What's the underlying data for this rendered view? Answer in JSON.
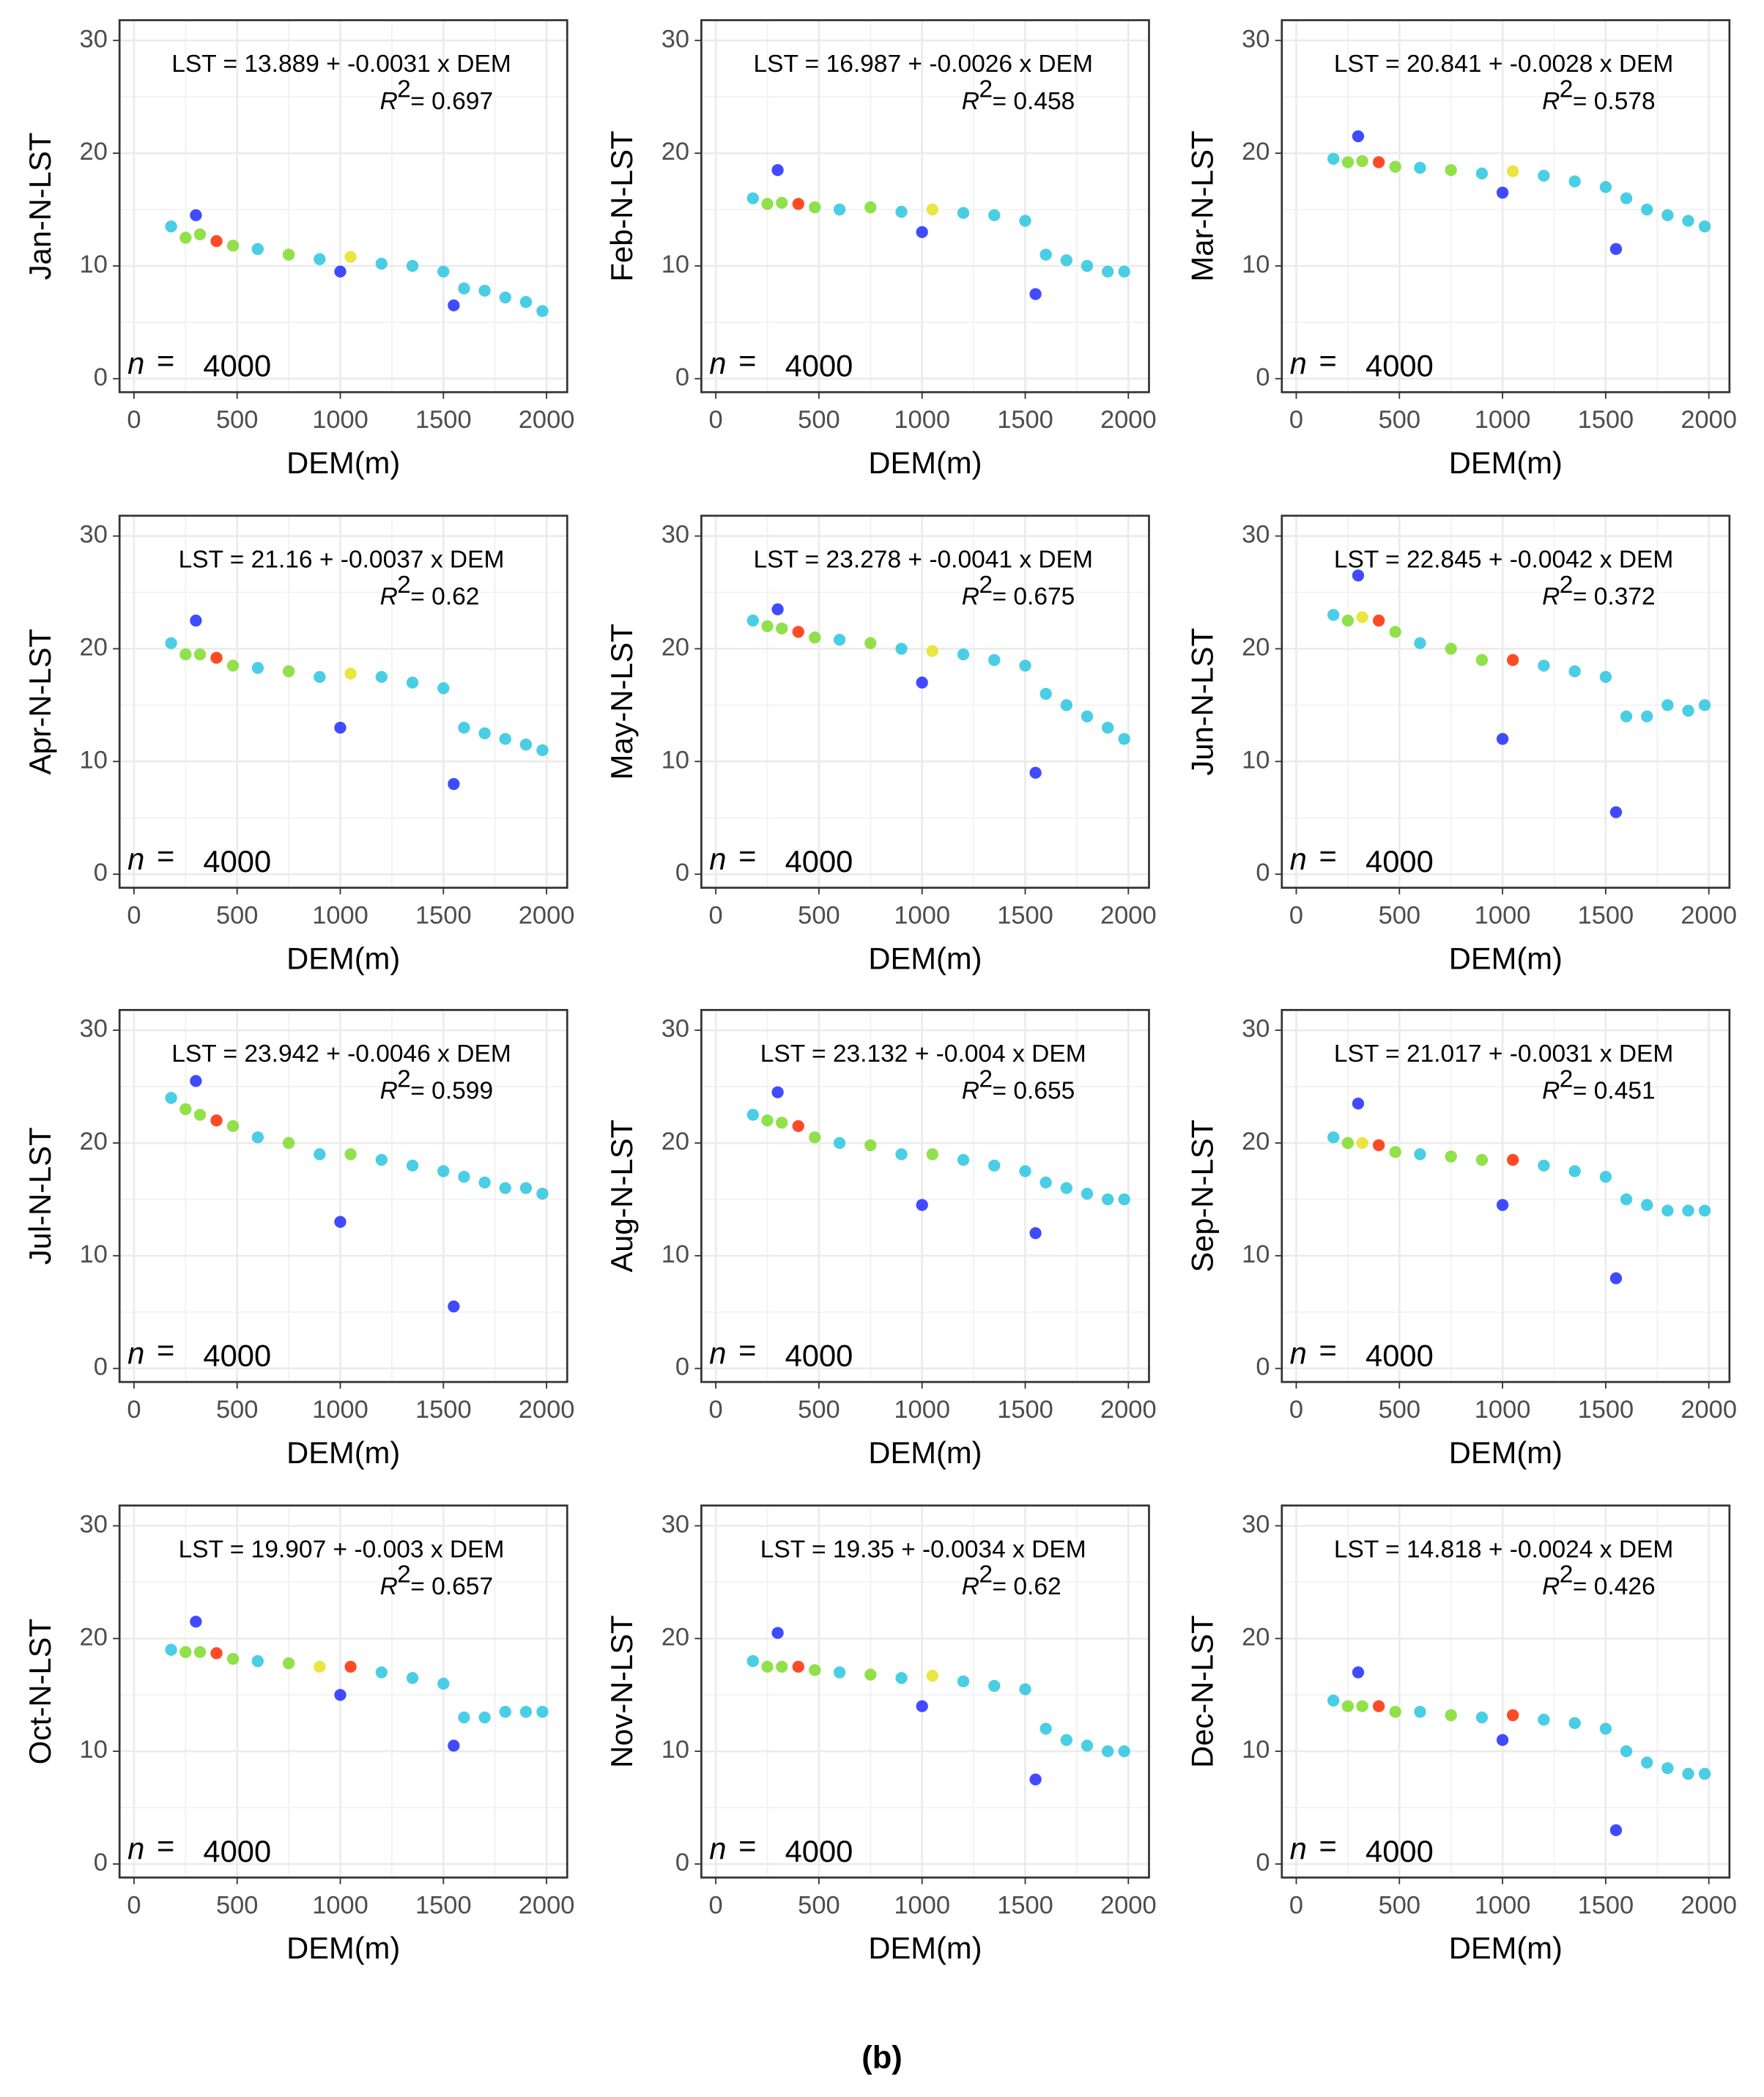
{
  "caption": "(b)",
  "chart_data": [
    {
      "type": "scatter",
      "y_label": "Jan-N-LST",
      "x_label": "DEM(m)",
      "equation": "LST = 13.889 + -0.0031 x DEM",
      "r2_symbol": "R",
      "r2_power": "2",
      "r2_value": "= 0.697",
      "n_symbol": "n",
      "n_equals": "=",
      "n_value": 4000,
      "xlim": [
        -70,
        2100
      ],
      "ylim": [
        -1.2,
        31.8
      ],
      "xticks": [
        0,
        500,
        1000,
        1500,
        2000
      ],
      "yticks": [
        0,
        10,
        20,
        30
      ],
      "grid": true,
      "x": [
        180,
        250,
        320,
        400,
        480,
        600,
        750,
        900,
        1050,
        1200,
        1350,
        1500,
        1600,
        1700,
        1800,
        1900,
        1980,
        300,
        1000,
        1550
      ],
      "y": [
        13.5,
        12.5,
        12.8,
        12.2,
        11.8,
        11.5,
        11.0,
        10.6,
        10.8,
        10.2,
        10.0,
        9.5,
        8.0,
        7.8,
        7.2,
        6.8,
        6.0,
        14.5,
        9.5,
        6.5
      ],
      "colors": [
        "#29c5e0",
        "#7ddc2a",
        "#7ddc2a",
        "#ff2a00",
        "#7ddc2a",
        "#29c5e0",
        "#7ddc2a",
        "#29c5e0",
        "#e8e020",
        "#29c5e0",
        "#29c5e0",
        "#29c5e0",
        "#29c5e0",
        "#29c5e0",
        "#29c5e0",
        "#29c5e0",
        "#29c5e0",
        "#1f2cff",
        "#1f2cff",
        "#1f2cff"
      ]
    },
    {
      "type": "scatter",
      "y_label": "Feb-N-LST",
      "x_label": "DEM(m)",
      "equation": "LST = 16.987 + -0.0026 x DEM",
      "r2_symbol": "R",
      "r2_power": "2",
      "r2_value": "= 0.458",
      "n_symbol": "n",
      "n_equals": "=",
      "n_value": 4000,
      "xlim": [
        -70,
        2100
      ],
      "ylim": [
        -1.2,
        31.8
      ],
      "xticks": [
        0,
        500,
        1000,
        1500,
        2000
      ],
      "yticks": [
        0,
        10,
        20,
        30
      ],
      "grid": true,
      "x": [
        180,
        250,
        320,
        400,
        480,
        600,
        750,
        900,
        1050,
        1200,
        1350,
        1500,
        1600,
        1700,
        1800,
        1900,
        1980,
        300,
        1000,
        1550
      ],
      "y": [
        16,
        15.5,
        15.6,
        15.5,
        15.2,
        15,
        15.2,
        14.8,
        15.0,
        14.7,
        14.5,
        14,
        11,
        10.5,
        10,
        9.5,
        9.5,
        18.5,
        13,
        7.5
      ],
      "colors": [
        "#29c5e0",
        "#7ddc2a",
        "#7ddc2a",
        "#ff2a00",
        "#7ddc2a",
        "#29c5e0",
        "#7ddc2a",
        "#29c5e0",
        "#e8e020",
        "#29c5e0",
        "#29c5e0",
        "#29c5e0",
        "#29c5e0",
        "#29c5e0",
        "#29c5e0",
        "#29c5e0",
        "#29c5e0",
        "#1f2cff",
        "#1f2cff",
        "#1f2cff"
      ]
    },
    {
      "type": "scatter",
      "y_label": "Mar-N-LST",
      "x_label": "DEM(m)",
      "equation": "LST = 20.841 + -0.0028 x DEM",
      "r2_symbol": "R",
      "r2_power": "2",
      "r2_value": "= 0.578",
      "n_symbol": "n",
      "n_equals": "=",
      "n_value": 4000,
      "xlim": [
        -70,
        2100
      ],
      "ylim": [
        -1.2,
        31.8
      ],
      "xticks": [
        0,
        500,
        1000,
        1500,
        2000
      ],
      "yticks": [
        0,
        10,
        20,
        30
      ],
      "grid": true,
      "x": [
        180,
        250,
        320,
        400,
        480,
        600,
        750,
        900,
        1050,
        1200,
        1350,
        1500,
        1600,
        1700,
        1800,
        1900,
        1980,
        300,
        1000,
        1550
      ],
      "y": [
        19.5,
        19.2,
        19.3,
        19.2,
        18.8,
        18.7,
        18.5,
        18.2,
        18.4,
        18,
        17.5,
        17,
        16,
        15,
        14.5,
        14,
        13.5,
        21.5,
        16.5,
        11.5
      ],
      "colors": [
        "#29c5e0",
        "#7ddc2a",
        "#7ddc2a",
        "#ff2a00",
        "#7ddc2a",
        "#29c5e0",
        "#7ddc2a",
        "#29c5e0",
        "#e8e020",
        "#29c5e0",
        "#29c5e0",
        "#29c5e0",
        "#29c5e0",
        "#29c5e0",
        "#29c5e0",
        "#29c5e0",
        "#29c5e0",
        "#1f2cff",
        "#1f2cff",
        "#1f2cff"
      ]
    },
    {
      "type": "scatter",
      "y_label": "Apr-N-LST",
      "x_label": "DEM(m)",
      "equation": "LST = 21.16 + -0.0037 x DEM",
      "r2_symbol": "R",
      "r2_power": "2",
      "r2_value": "= 0.62",
      "n_symbol": "n",
      "n_equals": "=",
      "n_value": 4000,
      "xlim": [
        -70,
        2100
      ],
      "ylim": [
        -1.2,
        31.8
      ],
      "xticks": [
        0,
        500,
        1000,
        1500,
        2000
      ],
      "yticks": [
        0,
        10,
        20,
        30
      ],
      "grid": true,
      "x": [
        180,
        250,
        320,
        400,
        480,
        600,
        750,
        900,
        1050,
        1200,
        1350,
        1500,
        1600,
        1700,
        1800,
        1900,
        1980,
        300,
        1000,
        1550
      ],
      "y": [
        20.5,
        19.5,
        19.5,
        19.2,
        18.5,
        18.3,
        18,
        17.5,
        17.8,
        17.5,
        17,
        16.5,
        13,
        12.5,
        12,
        11.5,
        11,
        22.5,
        13,
        8
      ],
      "colors": [
        "#29c5e0",
        "#7ddc2a",
        "#7ddc2a",
        "#ff2a00",
        "#7ddc2a",
        "#29c5e0",
        "#7ddc2a",
        "#29c5e0",
        "#e8e020",
        "#29c5e0",
        "#29c5e0",
        "#29c5e0",
        "#29c5e0",
        "#29c5e0",
        "#29c5e0",
        "#29c5e0",
        "#29c5e0",
        "#1f2cff",
        "#1f2cff",
        "#1f2cff"
      ]
    },
    {
      "type": "scatter",
      "y_label": "May-N-LST",
      "x_label": "DEM(m)",
      "equation": "LST = 23.278 + -0.0041 x DEM",
      "r2_symbol": "R",
      "r2_power": "2",
      "r2_value": "= 0.675",
      "n_symbol": "n",
      "n_equals": "=",
      "n_value": 4000,
      "xlim": [
        -70,
        2100
      ],
      "ylim": [
        -1.2,
        31.8
      ],
      "xticks": [
        0,
        500,
        1000,
        1500,
        2000
      ],
      "yticks": [
        0,
        10,
        20,
        30
      ],
      "grid": true,
      "x": [
        180,
        250,
        320,
        400,
        480,
        600,
        750,
        900,
        1050,
        1200,
        1350,
        1500,
        1600,
        1700,
        1800,
        1900,
        1980,
        300,
        1000,
        1550
      ],
      "y": [
        22.5,
        22,
        21.8,
        21.5,
        21,
        20.8,
        20.5,
        20,
        19.8,
        19.5,
        19,
        18.5,
        16,
        15,
        14,
        13,
        12,
        23.5,
        17,
        9
      ],
      "colors": [
        "#29c5e0",
        "#7ddc2a",
        "#7ddc2a",
        "#ff2a00",
        "#7ddc2a",
        "#29c5e0",
        "#7ddc2a",
        "#29c5e0",
        "#e8e020",
        "#29c5e0",
        "#29c5e0",
        "#29c5e0",
        "#29c5e0",
        "#29c5e0",
        "#29c5e0",
        "#29c5e0",
        "#29c5e0",
        "#1f2cff",
        "#1f2cff",
        "#1f2cff"
      ]
    },
    {
      "type": "scatter",
      "y_label": "Jun-N-LST",
      "x_label": "DEM(m)",
      "equation": "LST = 22.845 + -0.0042 x DEM",
      "r2_symbol": "R",
      "r2_power": "2",
      "r2_value": "= 0.372",
      "n_symbol": "n",
      "n_equals": "=",
      "n_value": 4000,
      "xlim": [
        -70,
        2100
      ],
      "ylim": [
        -1.2,
        31.8
      ],
      "xticks": [
        0,
        500,
        1000,
        1500,
        2000
      ],
      "yticks": [
        0,
        10,
        20,
        30
      ],
      "grid": true,
      "x": [
        180,
        250,
        320,
        400,
        480,
        600,
        750,
        900,
        1050,
        1200,
        1350,
        1500,
        1600,
        1700,
        1800,
        1900,
        1980,
        300,
        1000,
        1550
      ],
      "y": [
        23,
        22.5,
        22.8,
        22.5,
        21.5,
        20.5,
        20,
        19,
        19,
        18.5,
        18,
        17.5,
        14,
        14,
        15,
        14.5,
        15,
        26.5,
        12,
        5.5
      ],
      "colors": [
        "#29c5e0",
        "#7ddc2a",
        "#e8e020",
        "#ff2a00",
        "#7ddc2a",
        "#29c5e0",
        "#7ddc2a",
        "#7ddc2a",
        "#ff2a00",
        "#29c5e0",
        "#29c5e0",
        "#29c5e0",
        "#29c5e0",
        "#29c5e0",
        "#29c5e0",
        "#29c5e0",
        "#29c5e0",
        "#1f2cff",
        "#1f2cff",
        "#1f2cff"
      ]
    },
    {
      "type": "scatter",
      "y_label": "Jul-N-LST",
      "x_label": "DEM(m)",
      "equation": "LST = 23.942 + -0.0046 x DEM",
      "r2_symbol": "R",
      "r2_power": "2",
      "r2_value": "= 0.599",
      "n_symbol": "n",
      "n_equals": "=",
      "n_value": 4000,
      "xlim": [
        -70,
        2100
      ],
      "ylim": [
        -1.2,
        31.8
      ],
      "xticks": [
        0,
        500,
        1000,
        1500,
        2000
      ],
      "yticks": [
        0,
        10,
        20,
        30
      ],
      "grid": true,
      "x": [
        180,
        250,
        320,
        400,
        480,
        600,
        750,
        900,
        1050,
        1200,
        1350,
        1500,
        1600,
        1700,
        1800,
        1900,
        1980,
        300,
        1000,
        1550
      ],
      "y": [
        24,
        23,
        22.5,
        22,
        21.5,
        20.5,
        20,
        19,
        19,
        18.5,
        18,
        17.5,
        17,
        16.5,
        16,
        16,
        15.5,
        25.5,
        13,
        5.5
      ],
      "colors": [
        "#29c5e0",
        "#7ddc2a",
        "#7ddc2a",
        "#ff2a00",
        "#7ddc2a",
        "#29c5e0",
        "#7ddc2a",
        "#29c5e0",
        "#7ddc2a",
        "#29c5e0",
        "#29c5e0",
        "#29c5e0",
        "#29c5e0",
        "#29c5e0",
        "#29c5e0",
        "#29c5e0",
        "#29c5e0",
        "#1f2cff",
        "#1f2cff",
        "#1f2cff"
      ]
    },
    {
      "type": "scatter",
      "y_label": "Aug-N-LST",
      "x_label": "DEM(m)",
      "equation": "LST = 23.132 + -0.004 x DEM",
      "r2_symbol": "R",
      "r2_power": "2",
      "r2_value": "= 0.655",
      "n_symbol": "n",
      "n_equals": "=",
      "n_value": 4000,
      "xlim": [
        -70,
        2100
      ],
      "ylim": [
        -1.2,
        31.8
      ],
      "xticks": [
        0,
        500,
        1000,
        1500,
        2000
      ],
      "yticks": [
        0,
        10,
        20,
        30
      ],
      "grid": true,
      "x": [
        180,
        250,
        320,
        400,
        480,
        600,
        750,
        900,
        1050,
        1200,
        1350,
        1500,
        1600,
        1700,
        1800,
        1900,
        1980,
        300,
        1000,
        1550
      ],
      "y": [
        22.5,
        22,
        21.8,
        21.5,
        20.5,
        20,
        19.8,
        19,
        19,
        18.5,
        18,
        17.5,
        16.5,
        16,
        15.5,
        15,
        15,
        24.5,
        14.5,
        12
      ],
      "colors": [
        "#29c5e0",
        "#7ddc2a",
        "#7ddc2a",
        "#ff2a00",
        "#7ddc2a",
        "#29c5e0",
        "#7ddc2a",
        "#29c5e0",
        "#7ddc2a",
        "#29c5e0",
        "#29c5e0",
        "#29c5e0",
        "#29c5e0",
        "#29c5e0",
        "#29c5e0",
        "#29c5e0",
        "#29c5e0",
        "#1f2cff",
        "#1f2cff",
        "#1f2cff"
      ]
    },
    {
      "type": "scatter",
      "y_label": "Sep-N-LST",
      "x_label": "DEM(m)",
      "equation": "LST = 21.017 + -0.0031 x DEM",
      "r2_symbol": "R",
      "r2_power": "2",
      "r2_value": "= 0.451",
      "n_symbol": "n",
      "n_equals": "=",
      "n_value": 4000,
      "xlim": [
        -70,
        2100
      ],
      "ylim": [
        -1.2,
        31.8
      ],
      "xticks": [
        0,
        500,
        1000,
        1500,
        2000
      ],
      "yticks": [
        0,
        10,
        20,
        30
      ],
      "grid": true,
      "x": [
        180,
        250,
        320,
        400,
        480,
        600,
        750,
        900,
        1050,
        1200,
        1350,
        1500,
        1600,
        1700,
        1800,
        1900,
        1980,
        300,
        1000,
        1550
      ],
      "y": [
        20.5,
        20,
        20,
        19.8,
        19.2,
        19,
        18.8,
        18.5,
        18.5,
        18,
        17.5,
        17,
        15,
        14.5,
        14,
        14,
        14,
        23.5,
        14.5,
        8
      ],
      "colors": [
        "#29c5e0",
        "#7ddc2a",
        "#e8e020",
        "#ff2a00",
        "#7ddc2a",
        "#29c5e0",
        "#7ddc2a",
        "#7ddc2a",
        "#ff2a00",
        "#29c5e0",
        "#29c5e0",
        "#29c5e0",
        "#29c5e0",
        "#29c5e0",
        "#29c5e0",
        "#29c5e0",
        "#29c5e0",
        "#1f2cff",
        "#1f2cff",
        "#1f2cff"
      ]
    },
    {
      "type": "scatter",
      "y_label": "Oct-N-LST",
      "x_label": "DEM(m)",
      "equation": "LST = 19.907 + -0.003 x DEM",
      "r2_symbol": "R",
      "r2_power": "2",
      "r2_value": "= 0.657",
      "n_symbol": "n",
      "n_equals": "=",
      "n_value": 4000,
      "xlim": [
        -70,
        2100
      ],
      "ylim": [
        -1.2,
        31.8
      ],
      "xticks": [
        0,
        500,
        1000,
        1500,
        2000
      ],
      "yticks": [
        0,
        10,
        20,
        30
      ],
      "grid": true,
      "x": [
        180,
        250,
        320,
        400,
        480,
        600,
        750,
        900,
        1050,
        1200,
        1350,
        1500,
        1600,
        1700,
        1800,
        1900,
        1980,
        300,
        1000,
        1550
      ],
      "y": [
        19,
        18.8,
        18.8,
        18.7,
        18.2,
        18,
        17.8,
        17.5,
        17.5,
        17,
        16.5,
        16,
        13,
        13,
        13.5,
        13.5,
        13.5,
        21.5,
        15,
        10.5
      ],
      "colors": [
        "#29c5e0",
        "#7ddc2a",
        "#7ddc2a",
        "#ff2a00",
        "#7ddc2a",
        "#29c5e0",
        "#7ddc2a",
        "#e8e020",
        "#ff2a00",
        "#29c5e0",
        "#29c5e0",
        "#29c5e0",
        "#29c5e0",
        "#29c5e0",
        "#29c5e0",
        "#29c5e0",
        "#29c5e0",
        "#1f2cff",
        "#1f2cff",
        "#1f2cff"
      ]
    },
    {
      "type": "scatter",
      "y_label": "Nov-N-LST",
      "x_label": "DEM(m)",
      "equation": "LST = 19.35 + -0.0034 x DEM",
      "r2_symbol": "R",
      "r2_power": "2",
      "r2_value": "= 0.62",
      "n_symbol": "n",
      "n_equals": "=",
      "n_value": 4000,
      "xlim": [
        -70,
        2100
      ],
      "ylim": [
        -1.2,
        31.8
      ],
      "xticks": [
        0,
        500,
        1000,
        1500,
        2000
      ],
      "yticks": [
        0,
        10,
        20,
        30
      ],
      "grid": true,
      "x": [
        180,
        250,
        320,
        400,
        480,
        600,
        750,
        900,
        1050,
        1200,
        1350,
        1500,
        1600,
        1700,
        1800,
        1900,
        1980,
        300,
        1000,
        1550
      ],
      "y": [
        18,
        17.5,
        17.5,
        17.5,
        17.2,
        17,
        16.8,
        16.5,
        16.7,
        16.2,
        15.8,
        15.5,
        12,
        11,
        10.5,
        10,
        10,
        20.5,
        14,
        7.5
      ],
      "colors": [
        "#29c5e0",
        "#7ddc2a",
        "#7ddc2a",
        "#ff2a00",
        "#7ddc2a",
        "#29c5e0",
        "#7ddc2a",
        "#29c5e0",
        "#e8e020",
        "#29c5e0",
        "#29c5e0",
        "#29c5e0",
        "#29c5e0",
        "#29c5e0",
        "#29c5e0",
        "#29c5e0",
        "#29c5e0",
        "#1f2cff",
        "#1f2cff",
        "#1f2cff"
      ]
    },
    {
      "type": "scatter",
      "y_label": "Dec-N-LST",
      "x_label": "DEM(m)",
      "equation": "LST = 14.818 + -0.0024 x DEM",
      "r2_symbol": "R",
      "r2_power": "2",
      "r2_value": "= 0.426",
      "n_symbol": "n",
      "n_equals": "=",
      "n_value": 4000,
      "xlim": [
        -70,
        2100
      ],
      "ylim": [
        -1.2,
        31.8
      ],
      "xticks": [
        0,
        500,
        1000,
        1500,
        2000
      ],
      "yticks": [
        0,
        10,
        20,
        30
      ],
      "grid": true,
      "x": [
        180,
        250,
        320,
        400,
        480,
        600,
        750,
        900,
        1050,
        1200,
        1350,
        1500,
        1600,
        1700,
        1800,
        1900,
        1980,
        300,
        1000,
        1550
      ],
      "y": [
        14.5,
        14,
        14,
        14,
        13.5,
        13.5,
        13.2,
        13,
        13.2,
        12.8,
        12.5,
        12,
        10,
        9,
        8.5,
        8,
        8,
        17,
        11,
        3
      ],
      "colors": [
        "#29c5e0",
        "#7ddc2a",
        "#7ddc2a",
        "#ff2a00",
        "#7ddc2a",
        "#29c5e0",
        "#7ddc2a",
        "#29c5e0",
        "#ff2a00",
        "#29c5e0",
        "#29c5e0",
        "#29c5e0",
        "#29c5e0",
        "#29c5e0",
        "#29c5e0",
        "#29c5e0",
        "#29c5e0",
        "#1f2cff",
        "#1f2cff",
        "#1f2cff"
      ]
    }
  ]
}
